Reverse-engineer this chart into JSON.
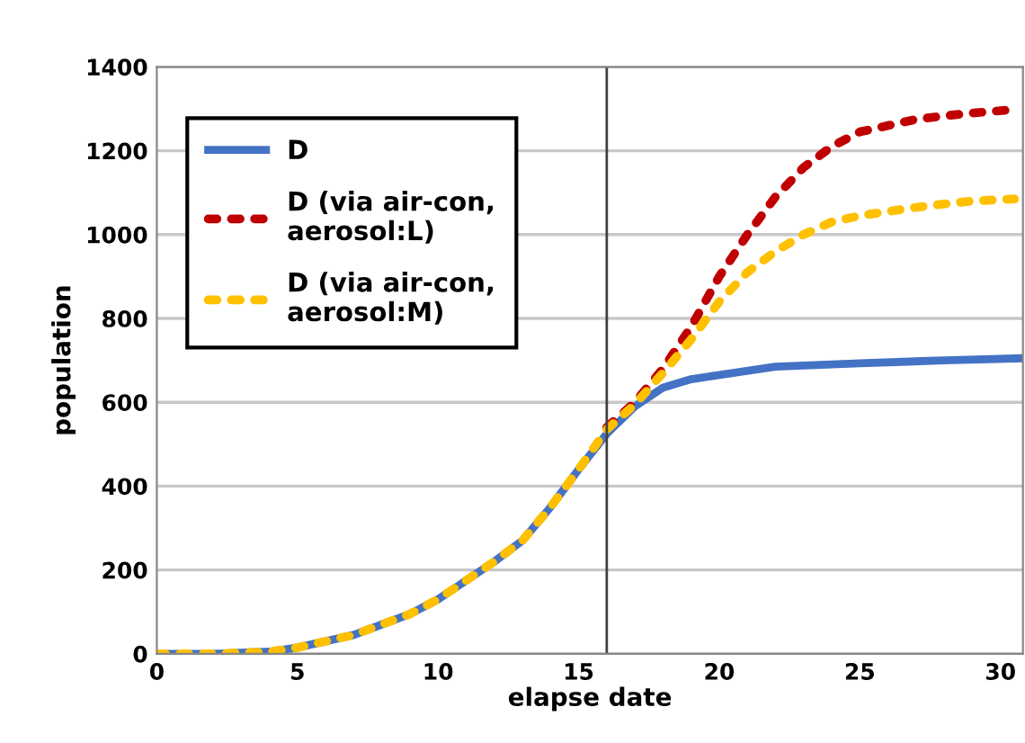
{
  "chart_data": {
    "type": "line",
    "xlabel": "elapse date",
    "ylabel": "population",
    "xlim": [
      0,
      30.8
    ],
    "xticks": [
      0,
      5,
      10,
      15,
      20,
      25,
      30
    ],
    "ylim": [
      0,
      1400
    ],
    "yticks": [
      0,
      200,
      400,
      600,
      800,
      1000,
      1200,
      1400
    ],
    "grid": "y",
    "legend": "top left",
    "ref_lines": [
      {
        "axis": "x",
        "value": 16,
        "color": "#404040"
      }
    ],
    "series": [
      {
        "name": "D",
        "color": "#4472c4",
        "line_style": "solid",
        "x": [
          0,
          2,
          4,
          5,
          6,
          7,
          8,
          9,
          10,
          11,
          12,
          13,
          14,
          15,
          16,
          17,
          18,
          19,
          20,
          22,
          25,
          28,
          30.8
        ],
        "values": [
          0,
          0,
          5,
          15,
          30,
          45,
          70,
          95,
          130,
          175,
          220,
          270,
          350,
          440,
          525,
          590,
          635,
          655,
          665,
          685,
          693,
          700,
          705
        ]
      },
      {
        "name": "D (via air-con, aerosol:L)",
        "color": "#c00000",
        "line_style": "dotted",
        "x": [
          16,
          17,
          18,
          19,
          20,
          21,
          22,
          23,
          24,
          25,
          26,
          27,
          28,
          29,
          30.5
        ],
        "values": [
          540,
          600,
          680,
          780,
          900,
          1000,
          1090,
          1160,
          1210,
          1245,
          1260,
          1275,
          1283,
          1290,
          1298
        ]
      },
      {
        "name": "D (via air-con, aerosol:M)",
        "color": "#ffc000",
        "line_style": "dotted",
        "x": [
          0,
          2,
          4,
          5,
          6,
          7,
          8,
          9,
          10,
          11,
          12,
          13,
          14,
          15,
          16,
          17,
          18,
          19,
          20,
          21,
          22,
          23,
          24,
          25,
          26,
          27,
          28,
          29,
          30.5
        ],
        "values": [
          0,
          0,
          5,
          15,
          30,
          45,
          70,
          95,
          130,
          175,
          220,
          270,
          350,
          440,
          535,
          595,
          670,
          750,
          840,
          910,
          960,
          1000,
          1030,
          1045,
          1055,
          1065,
          1073,
          1080,
          1085
        ]
      }
    ]
  }
}
